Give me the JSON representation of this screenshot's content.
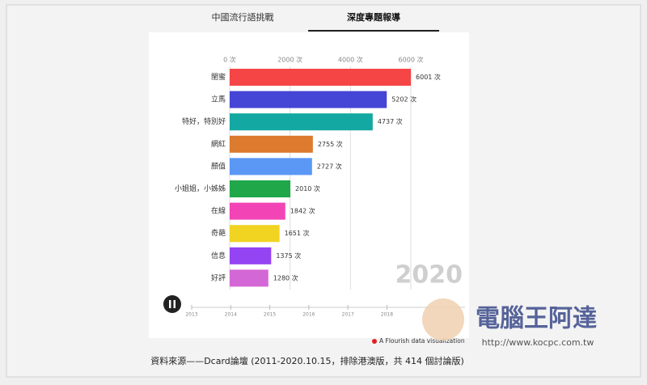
{
  "tabs": [
    "中國流行語挑戰",
    "深度專題報導"
  ],
  "chart_data": {
    "type": "bar",
    "orientation": "horizontal",
    "categories": [
      "閨蜜",
      "立馬",
      "特好，特別好",
      "網紅",
      "顏值",
      "小姐姐，小姊姊",
      "在線",
      "奇葩",
      "信息",
      "好評"
    ],
    "values": [
      6001,
      5202,
      4737,
      2755,
      2727,
      2010,
      1842,
      1651,
      1375,
      1280
    ],
    "value_labels": [
      "6001 次",
      "5202 次",
      "4737 次",
      "2755 次",
      "2727 次",
      "2010 次",
      "1842 次",
      "1651 次",
      "1375 次",
      "1280 次"
    ],
    "colors": [
      "#f64545",
      "#4545d6",
      "#14a8a2",
      "#dc7a2e",
      "#5b97f5",
      "#1fa74a",
      "#f244b4",
      "#f1d322",
      "#9444f3",
      "#d467d6"
    ],
    "xlim": [
      0,
      6000
    ],
    "xticks": [
      {
        "value": 0,
        "label": "0 次"
      },
      {
        "value": 2000,
        "label": "2000 次"
      },
      {
        "value": 4000,
        "label": "4000 次"
      },
      {
        "value": 6000,
        "label": "6000 次"
      }
    ],
    "grid": true,
    "year": "2020",
    "timeline_lim": [
      2013,
      2020
    ],
    "timeline_ticks": [
      2013,
      2014,
      2015,
      2016,
      2017,
      2018
    ]
  },
  "credit": "A Flourish data visualization",
  "caption": "資料來源——Dcard論壇 (2011-2020.10.15，排除港澳版，共 414 個討論版)",
  "watermark": {
    "name": "電腦王阿達",
    "url": "http://www.kocpc.com.tw"
  }
}
